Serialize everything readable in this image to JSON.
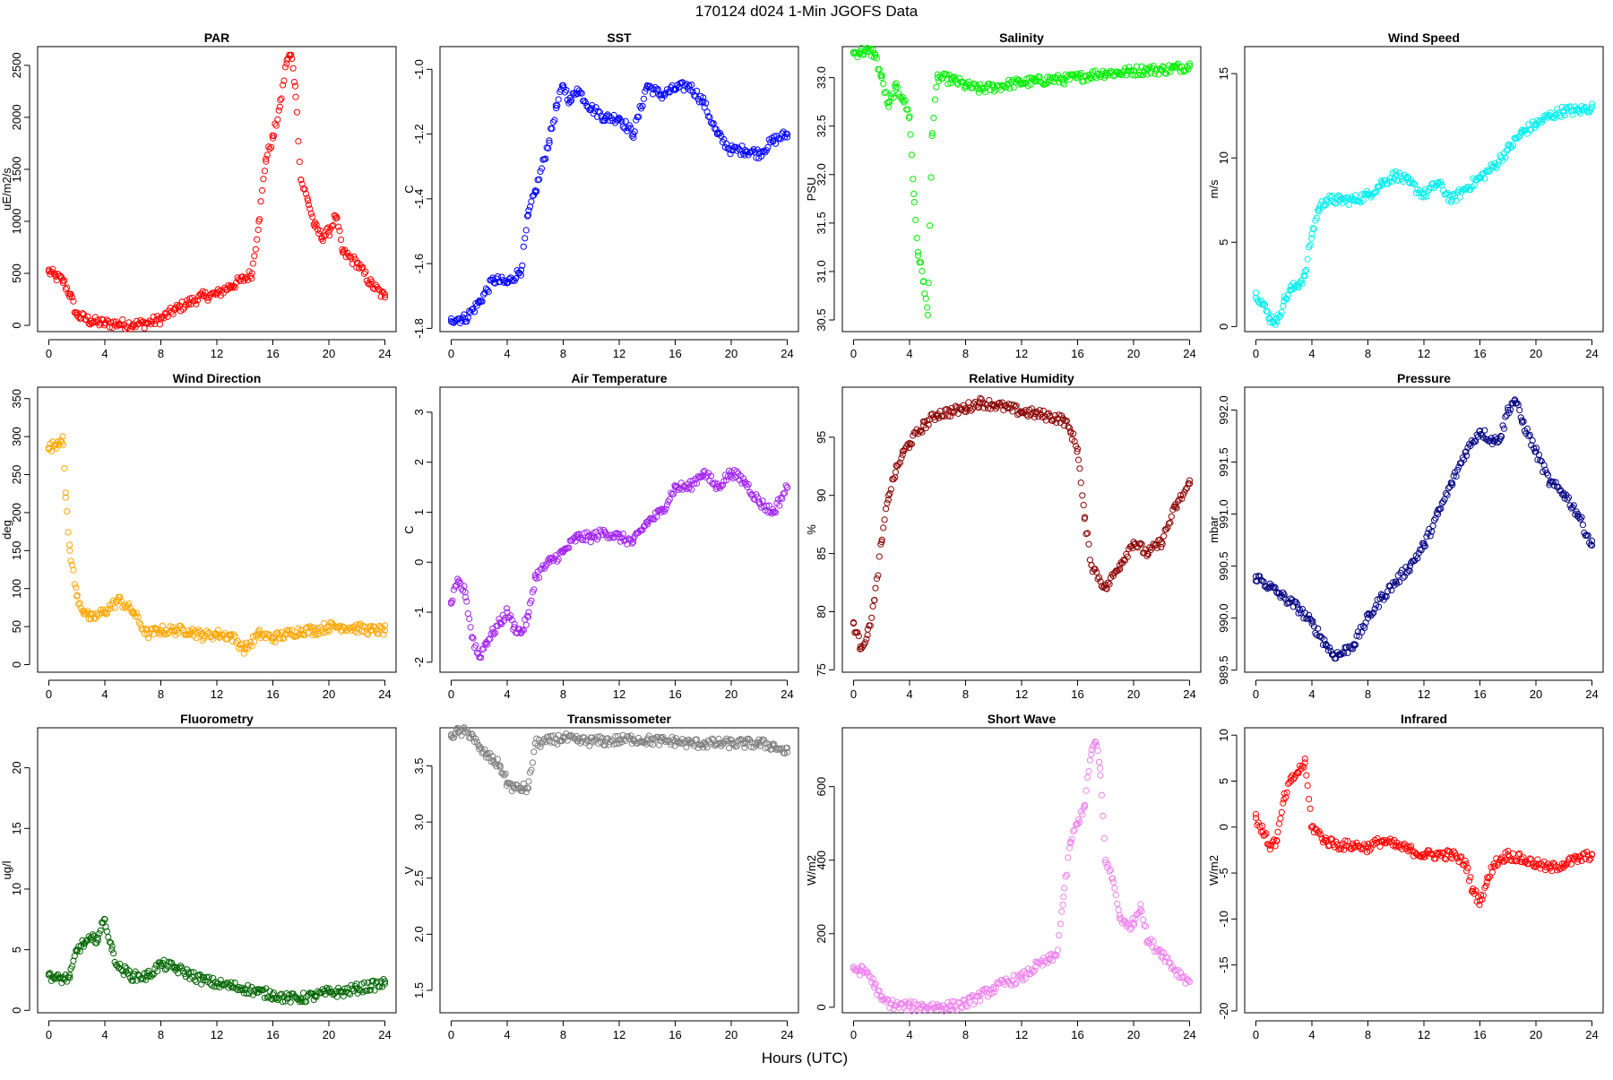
{
  "figure": {
    "title": "170124   d024   1-Min  JGOFS Data",
    "xlabel": "Hours (UTC)"
  },
  "chart_data": [
    {
      "type": "scatter",
      "title": "PAR",
      "ylabel": "uE/m2/s",
      "color": "#ff0000",
      "xlim": [
        -0.8,
        24.8
      ],
      "ylim": [
        -60,
        2680
      ],
      "xticks": [
        0,
        4,
        8,
        12,
        16,
        20,
        24
      ],
      "yticks": [
        0,
        500,
        1000,
        1500,
        2000,
        2500
      ],
      "x": [
        0,
        0.5,
        1,
        1.5,
        2,
        3,
        4,
        5,
        6,
        7,
        8,
        9,
        10,
        11,
        12,
        13,
        14,
        14.5,
        15,
        15.5,
        16,
        16.5,
        17,
        17.3,
        17.6,
        18,
        18.5,
        19,
        19.5,
        20,
        20.5,
        21,
        22,
        23,
        24
      ],
      "y": [
        520,
        470,
        430,
        300,
        100,
        40,
        20,
        15,
        10,
        20,
        60,
        150,
        220,
        280,
        300,
        380,
        450,
        500,
        1000,
        1600,
        1800,
        2100,
        2550,
        2600,
        2300,
        1400,
        1200,
        950,
        850,
        900,
        1050,
        700,
        600,
        400,
        270
      ]
    },
    {
      "type": "scatter",
      "title": "SST",
      "ylabel": "C",
      "color": "#0000ff",
      "xlim": [
        -0.8,
        24.8
      ],
      "ylim": [
        -1.81,
        -0.93
      ],
      "xticks": [
        0,
        4,
        8,
        12,
        16,
        20,
        24
      ],
      "yticks": [
        -1.8,
        -1.6,
        -1.4,
        -1.2,
        -1.0
      ],
      "x": [
        0,
        1,
        2,
        3,
        4,
        5,
        5.5,
        6,
        7,
        7.5,
        8,
        8.5,
        9,
        10,
        11,
        12,
        13,
        14,
        15,
        16,
        17,
        18,
        19,
        20,
        21,
        22,
        23,
        24
      ],
      "y": [
        -1.77,
        -1.77,
        -1.72,
        -1.65,
        -1.66,
        -1.62,
        -1.45,
        -1.38,
        -1.22,
        -1.12,
        -1.05,
        -1.1,
        -1.06,
        -1.12,
        -1.15,
        -1.15,
        -1.2,
        -1.05,
        -1.08,
        -1.06,
        -1.05,
        -1.1,
        -1.2,
        -1.25,
        -1.25,
        -1.26,
        -1.22,
        -1.2
      ]
    },
    {
      "type": "scatter",
      "title": "Salinity",
      "ylabel": "PSU",
      "color": "#00ee00",
      "xlim": [
        -0.8,
        24.8
      ],
      "ylim": [
        30.38,
        33.32
      ],
      "xticks": [
        0,
        4,
        8,
        12,
        16,
        20,
        24
      ],
      "yticks": [
        30.5,
        31.0,
        31.5,
        32.0,
        32.5,
        33.0
      ],
      "x": [
        0,
        0.5,
        1,
        1.5,
        2,
        2.5,
        3,
        3.5,
        4,
        4.3,
        4.6,
        5,
        5.3,
        5.6,
        6,
        7,
        8,
        9,
        10,
        11,
        12,
        13,
        14,
        15,
        16,
        17,
        18,
        19,
        20,
        21,
        22,
        23,
        24
      ],
      "y": [
        33.25,
        33.27,
        33.27,
        33.25,
        33.0,
        32.7,
        32.9,
        32.8,
        32.6,
        31.8,
        31.2,
        30.9,
        30.55,
        32.4,
        33.0,
        32.98,
        32.92,
        32.88,
        32.9,
        32.93,
        32.95,
        32.96,
        32.98,
        32.98,
        33.0,
        33.03,
        33.05,
        33.05,
        33.07,
        33.08,
        33.08,
        33.1,
        33.12
      ]
    },
    {
      "type": "scatter",
      "title": "Wind Speed",
      "ylabel": "m/s",
      "color": "#00eeee",
      "xlim": [
        -0.8,
        24.8
      ],
      "ylim": [
        -0.3,
        16.6
      ],
      "xticks": [
        0,
        4,
        8,
        12,
        16,
        20,
        24
      ],
      "yticks": [
        0,
        5,
        10,
        15
      ],
      "x": [
        0,
        0.5,
        1,
        1.5,
        2,
        2.5,
        3,
        3.5,
        4,
        4.5,
        5,
        6,
        7,
        8,
        9,
        10,
        11,
        12,
        13,
        14,
        15,
        16,
        17,
        18,
        19,
        20,
        21,
        22,
        23,
        24
      ],
      "y": [
        2,
        1.3,
        0.5,
        0.3,
        1.5,
        2.2,
        2.5,
        3,
        5.5,
        7,
        7.5,
        7.5,
        7.5,
        7.8,
        8.5,
        9,
        8.5,
        7.8,
        8.5,
        7.5,
        8.2,
        8.8,
        9.5,
        10.5,
        11.5,
        12,
        12.5,
        12.8,
        12.8,
        13
      ]
    },
    {
      "type": "scatter",
      "title": "Wind Direction",
      "ylabel": "deg",
      "color": "#ffa500",
      "xlim": [
        -0.8,
        24.8
      ],
      "ylim": [
        -10,
        365
      ],
      "xticks": [
        0,
        4,
        8,
        12,
        16,
        20,
        24
      ],
      "yticks": [
        0,
        50,
        100,
        150,
        200,
        250,
        300,
        350
      ],
      "x": [
        0,
        0.5,
        1,
        1.2,
        1.5,
        2,
        2.5,
        3,
        4,
        5,
        6,
        7,
        8,
        9,
        10,
        11,
        12,
        13,
        14,
        15,
        16,
        17,
        18,
        19,
        20,
        21,
        22,
        23,
        24
      ],
      "y": [
        285,
        290,
        300,
        220,
        150,
        90,
        70,
        60,
        70,
        85,
        70,
        40,
        45,
        45,
        45,
        38,
        40,
        38,
        20,
        40,
        35,
        40,
        45,
        45,
        50,
        50,
        48,
        45,
        45
      ]
    },
    {
      "type": "scatter",
      "title": "Air Temperature",
      "ylabel": "C",
      "color": "#a020f0",
      "xlim": [
        -0.8,
        24.8
      ],
      "ylim": [
        -2.2,
        3.5
      ],
      "xticks": [
        0,
        4,
        8,
        12,
        16,
        20,
        24
      ],
      "yticks": [
        -2,
        -1,
        0,
        1,
        2,
        3
      ],
      "x": [
        0,
        0.5,
        1,
        1.5,
        2,
        2.5,
        3,
        3.5,
        4,
        4.5,
        5,
        5.5,
        6,
        7,
        8,
        9,
        10,
        11,
        12,
        13,
        14,
        15,
        16,
        17,
        18,
        19,
        20,
        21,
        22,
        23,
        24
      ],
      "y": [
        -0.8,
        -0.4,
        -0.6,
        -1.5,
        -1.9,
        -1.6,
        -1.4,
        -1.2,
        -1.0,
        -1.3,
        -1.4,
        -1.1,
        -0.3,
        0.0,
        0.2,
        0.5,
        0.5,
        0.6,
        0.5,
        0.4,
        0.8,
        1.0,
        1.5,
        1.5,
        1.8,
        1.5,
        1.8,
        1.6,
        1.2,
        1.0,
        1.5
      ]
    },
    {
      "type": "scatter",
      "title": "Relative Humidity",
      "ylabel": "%",
      "color": "#8b0000",
      "xlim": [
        -0.8,
        24.8
      ],
      "ylim": [
        74.8,
        99.3
      ],
      "xticks": [
        0,
        4,
        8,
        12,
        16,
        20,
        24
      ],
      "yticks": [
        75,
        80,
        85,
        90,
        95
      ],
      "x": [
        0,
        0.5,
        1,
        1.5,
        2,
        2.5,
        3,
        3.5,
        4,
        5,
        6,
        7,
        8,
        9,
        10,
        11,
        12,
        13,
        14,
        15,
        15.5,
        16,
        16.5,
        17,
        18,
        19,
        20,
        21,
        22,
        23,
        24
      ],
      "y": [
        79,
        77,
        78,
        81,
        86,
        90,
        92,
        93.5,
        94.5,
        96,
        97,
        97.2,
        97.5,
        98,
        97.8,
        97.5,
        97.2,
        97,
        96.8,
        96.5,
        95.5,
        94,
        88,
        84,
        82,
        84,
        86,
        85,
        86,
        89,
        91
      ]
    },
    {
      "type": "scatter",
      "title": "Pressure",
      "ylabel": "mbar",
      "color": "#000080",
      "xlim": [
        -0.8,
        24.8
      ],
      "ylim": [
        989.48,
        992.22
      ],
      "xticks": [
        0,
        4,
        8,
        12,
        16,
        20,
        24
      ],
      "yticks": [
        989.5,
        990.0,
        990.5,
        991.0,
        991.5,
        992.0
      ],
      "x": [
        0,
        1,
        2,
        3,
        4,
        5,
        5.5,
        6,
        7,
        8,
        9,
        10,
        11,
        12,
        13,
        14,
        15,
        16,
        17,
        17.5,
        18,
        18.5,
        19,
        20,
        21,
        22,
        23,
        24
      ],
      "y": [
        990.4,
        990.3,
        990.2,
        990.1,
        989.95,
        989.75,
        989.65,
        989.65,
        989.75,
        990.0,
        990.2,
        990.35,
        990.5,
        990.7,
        991.0,
        991.3,
        991.6,
        991.8,
        991.7,
        991.75,
        992.0,
        992.1,
        991.9,
        991.6,
        991.3,
        991.2,
        991.0,
        990.7
      ]
    },
    {
      "type": "scatter",
      "title": "Fluorometry",
      "ylabel": "ug/l",
      "color": "#006400",
      "xlim": [
        -0.8,
        24.8
      ],
      "ylim": [
        -0.2,
        23.3
      ],
      "xticks": [
        0,
        4,
        8,
        12,
        16,
        20,
        24
      ],
      "yticks": [
        0,
        5,
        10,
        15,
        20
      ],
      "x": [
        0,
        0.5,
        1,
        1.5,
        2,
        2.5,
        3,
        3.5,
        4,
        4.5,
        5,
        5.5,
        6,
        7,
        8,
        9,
        10,
        11,
        12,
        13,
        14,
        15,
        16,
        17,
        18,
        19,
        20,
        21,
        22,
        23,
        24
      ],
      "y": [
        3.0,
        2.6,
        2.6,
        2.7,
        5.0,
        5.5,
        5.8,
        6.0,
        7.5,
        5.0,
        3.5,
        3.2,
        2.8,
        2.8,
        3.8,
        3.5,
        3.0,
        2.5,
        2.2,
        2.0,
        1.8,
        1.5,
        1.3,
        1.0,
        1.0,
        1.2,
        1.5,
        1.5,
        1.8,
        2.0,
        2.2
      ]
    },
    {
      "type": "scatter",
      "title": "Transmissometer",
      "ylabel": "V",
      "color": "#7f7f7f",
      "xlim": [
        -0.8,
        24.8
      ],
      "ylim": [
        1.3,
        3.84
      ],
      "xticks": [
        0,
        4,
        8,
        12,
        16,
        20,
        24
      ],
      "yticks": [
        1.5,
        2.0,
        2.5,
        3.0,
        3.5
      ],
      "x": [
        0,
        0.5,
        1,
        1.5,
        2,
        2.5,
        3,
        3.5,
        4,
        4.5,
        5,
        5.5,
        6,
        7,
        8,
        9,
        10,
        11,
        12,
        13,
        14,
        15,
        16,
        17,
        18,
        19,
        20,
        21,
        22,
        23,
        24
      ],
      "y": [
        3.78,
        3.8,
        3.8,
        3.78,
        3.65,
        3.6,
        3.55,
        3.5,
        3.35,
        3.3,
        3.3,
        3.3,
        3.7,
        3.72,
        3.75,
        3.72,
        3.72,
        3.72,
        3.73,
        3.74,
        3.73,
        3.72,
        3.72,
        3.7,
        3.7,
        3.7,
        3.7,
        3.7,
        3.7,
        3.68,
        3.62
      ]
    },
    {
      "type": "scatter",
      "title": "Short Wave",
      "ylabel": "W/m2",
      "color": "#ee82ee",
      "xlim": [
        -0.8,
        24.8
      ],
      "ylim": [
        -15,
        760
      ],
      "xticks": [
        0,
        4,
        8,
        12,
        16,
        20,
        24
      ],
      "yticks": [
        0,
        200,
        400,
        600
      ],
      "x": [
        0,
        0.5,
        1,
        1.5,
        2,
        3,
        4,
        5,
        6,
        7,
        8,
        9,
        10,
        11,
        12,
        13,
        14,
        14.5,
        15,
        15.5,
        16,
        16.5,
        17,
        17.3,
        17.6,
        18,
        18.5,
        19,
        19.5,
        20,
        20.5,
        21,
        22,
        23,
        24
      ],
      "y": [
        105,
        100,
        95,
        60,
        20,
        5,
        2,
        2,
        2,
        3,
        10,
        30,
        50,
        70,
        80,
        110,
        130,
        140,
        300,
        450,
        500,
        550,
        700,
        720,
        650,
        400,
        350,
        250,
        220,
        230,
        280,
        180,
        150,
        100,
        70
      ]
    },
    {
      "type": "scatter",
      "title": "Infrared",
      "ylabel": "W/m2",
      "color": "#ff0000",
      "xlim": [
        -0.8,
        24.8
      ],
      "ylim": [
        -20.2,
        10.8
      ],
      "xticks": [
        0,
        4,
        8,
        12,
        16,
        20,
        24
      ],
      "yticks": [
        -20,
        -15,
        -10,
        -5,
        0,
        5,
        10
      ],
      "x": [
        0,
        0.5,
        1,
        1.5,
        2,
        2.5,
        3,
        3.5,
        4,
        5,
        6,
        7,
        8,
        9,
        10,
        11,
        12,
        13,
        14,
        15,
        15.5,
        16,
        16.5,
        17,
        17.5,
        18,
        19,
        20,
        21,
        22,
        23,
        24
      ],
      "y": [
        1.0,
        -0.5,
        -2.0,
        -1.5,
        3.0,
        5.0,
        6.0,
        7.0,
        0.0,
        -1.5,
        -2.0,
        -2.0,
        -2.2,
        -1.5,
        -2.0,
        -2.5,
        -3.0,
        -3.0,
        -3.0,
        -4.0,
        -7.0,
        -8.0,
        -6.0,
        -4.0,
        -3.5,
        -3.0,
        -3.5,
        -4.0,
        -4.5,
        -4.0,
        -3.5,
        -3.0
      ]
    }
  ]
}
